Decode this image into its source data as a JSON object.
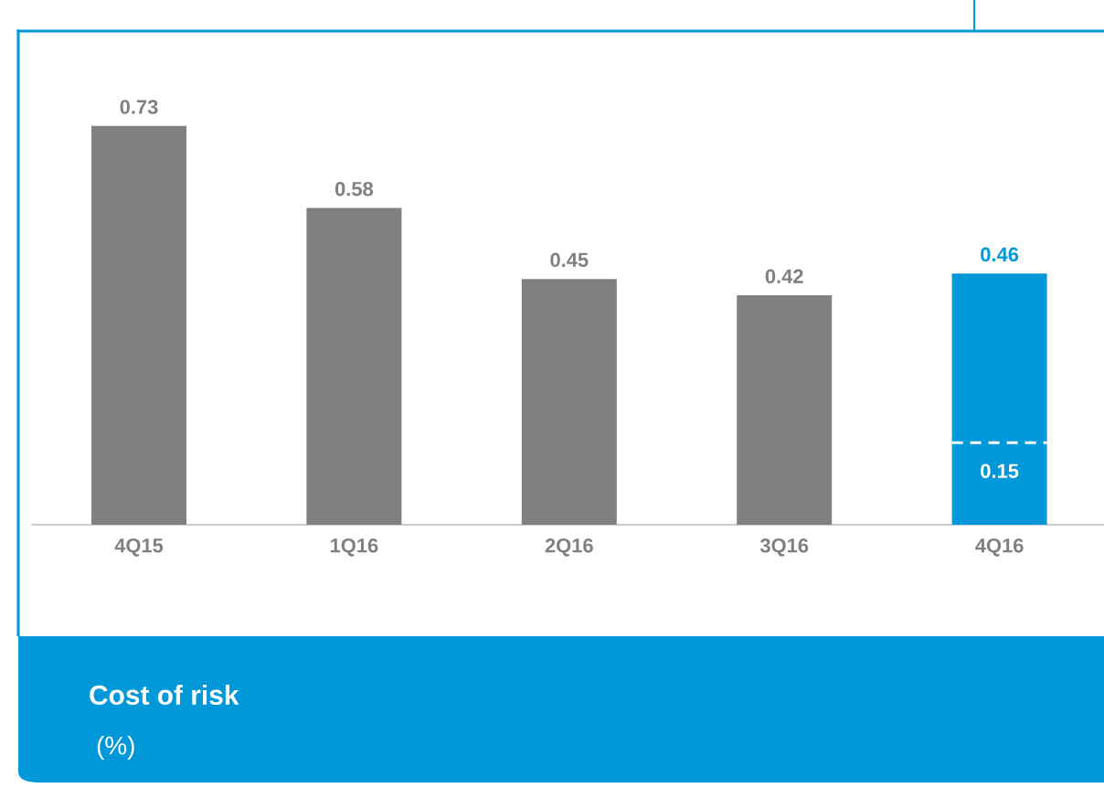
{
  "chart_data": {
    "type": "bar",
    "title": "Cost of risk",
    "subtitle": "(%)",
    "categories": [
      "4Q15",
      "1Q16",
      "2Q16",
      "3Q16",
      "4Q16"
    ],
    "values": [
      0.73,
      0.58,
      0.45,
      0.42,
      0.46
    ],
    "colors": [
      "#808080",
      "#808080",
      "#808080",
      "#808080",
      "#0098d8"
    ],
    "tick_labels": "x",
    "data_labels": true,
    "ref_lines": [
      {
        "axis": "y",
        "value": 0.15,
        "label": "0.15",
        "color": "#ffffff",
        "line_style": "dashed"
      }
    ]
  }
}
